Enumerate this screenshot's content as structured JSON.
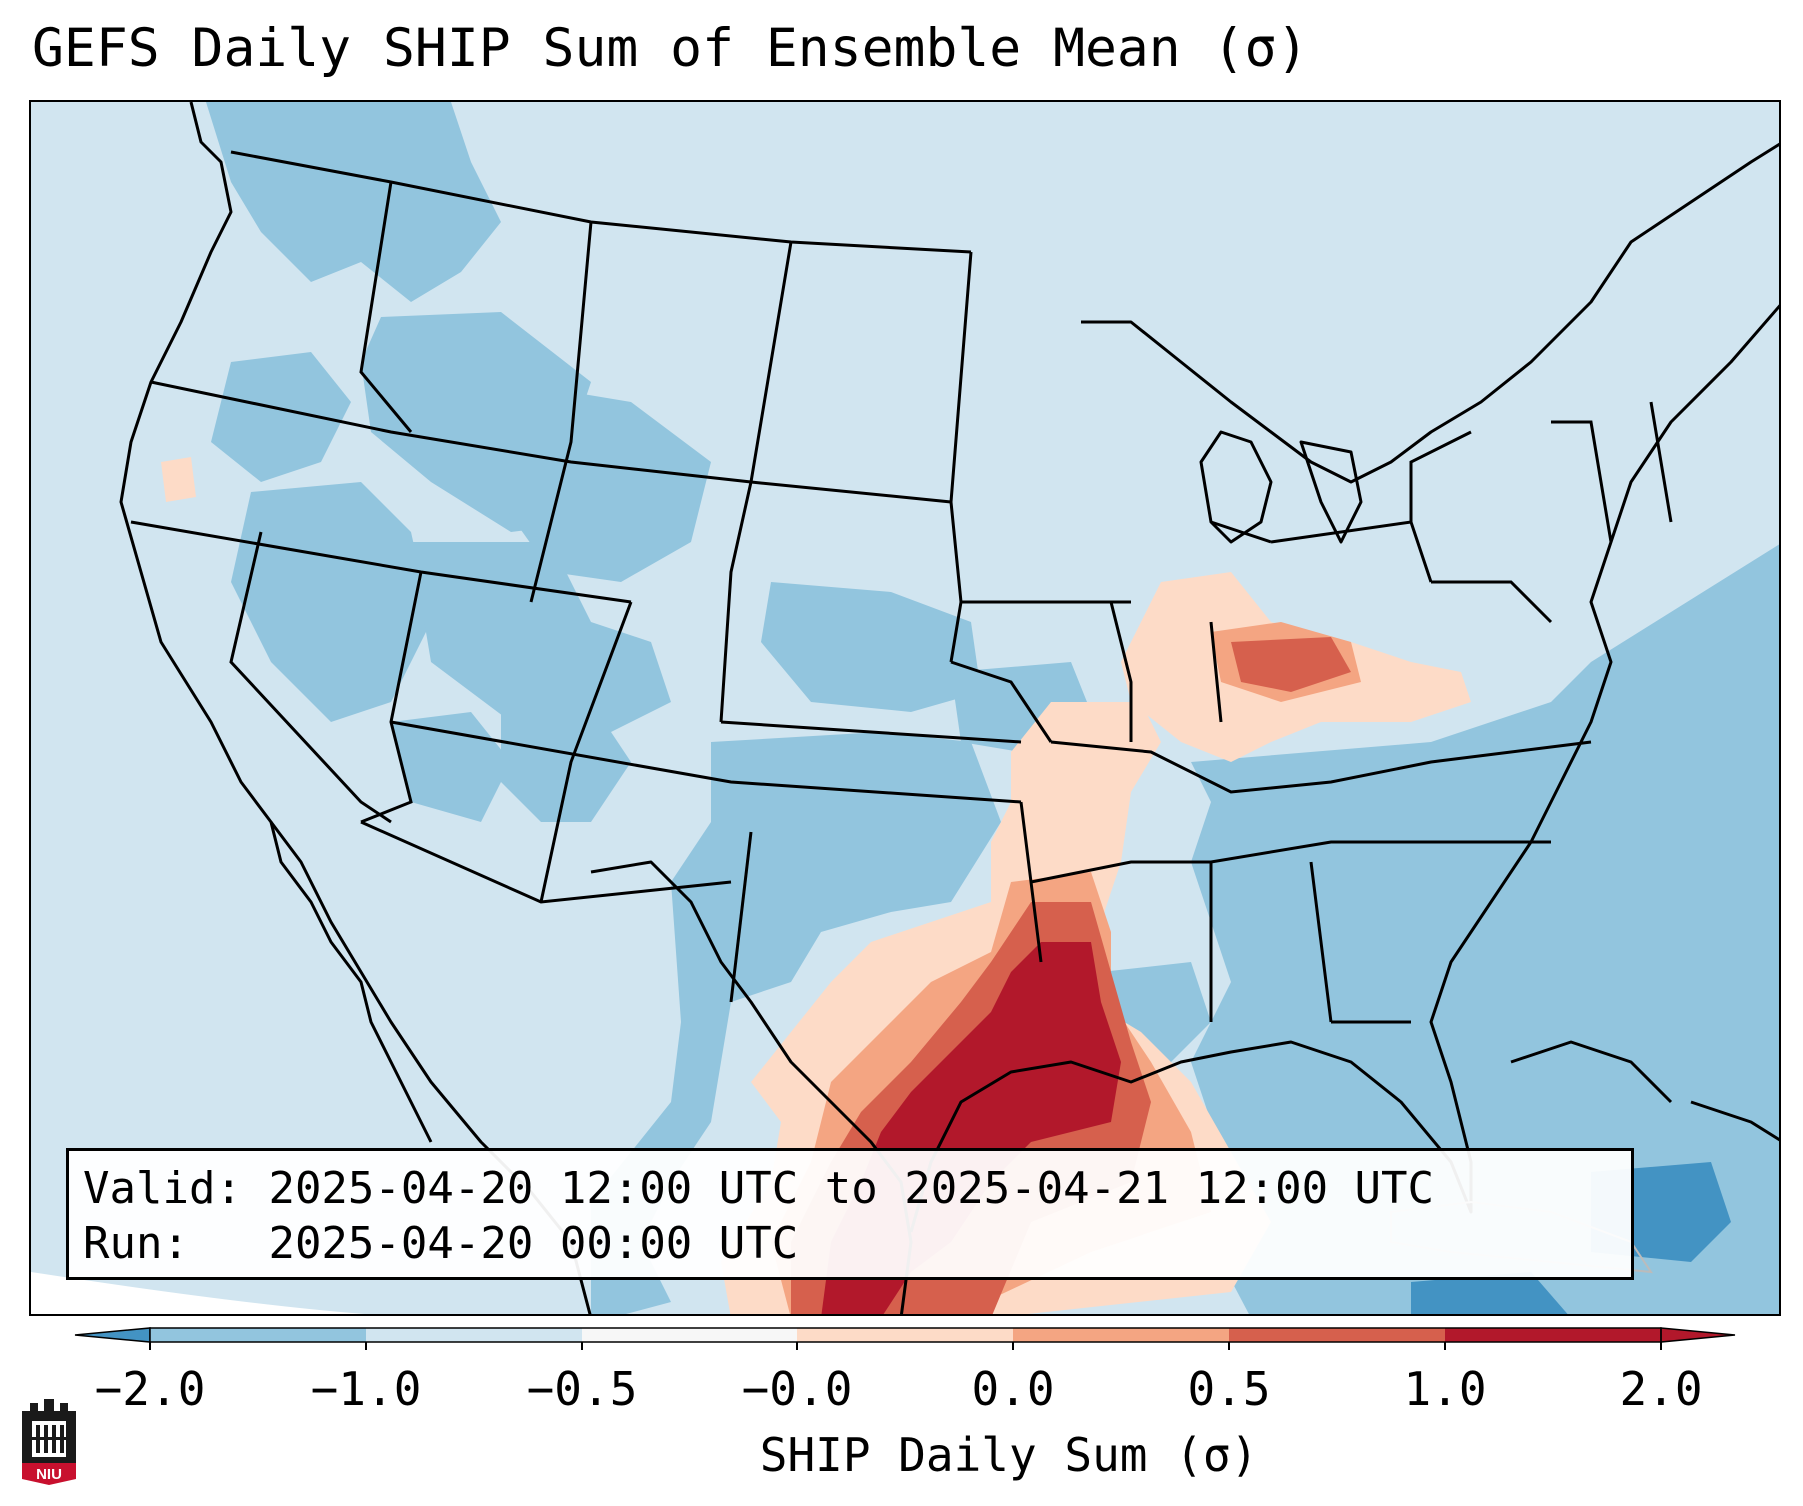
{
  "title": "GEFS Daily SHIP Sum of Ensemble Mean (σ)",
  "info": {
    "valid_label": "Valid:",
    "valid_value": "2025-04-20 12:00 UTC to 2025-04-21 12:00 UTC",
    "run_label": "Run:",
    "run_value": "2025-04-20 00:00 UTC"
  },
  "colorbar": {
    "label": "SHIP Daily Sum (σ)",
    "ticks": [
      "−2.0",
      "−1.0",
      "−0.5",
      "−0.0",
      "0.0",
      "0.5",
      "1.0",
      "2.0"
    ],
    "colors": [
      "#4393c3",
      "#92c5de",
      "#d1e5f0",
      "#f7f7f7",
      "#fddbc7",
      "#f4a582",
      "#d6604d",
      "#b2182b"
    ],
    "extend": "both"
  },
  "logo": {
    "text": "NIU",
    "icon": "niu-castle-logo-icon"
  },
  "map": {
    "background_color": "#d1e5f0",
    "region": "Contiguous United States",
    "max_anomaly_region": "Texas and Louisiana Gulf Coast"
  }
}
